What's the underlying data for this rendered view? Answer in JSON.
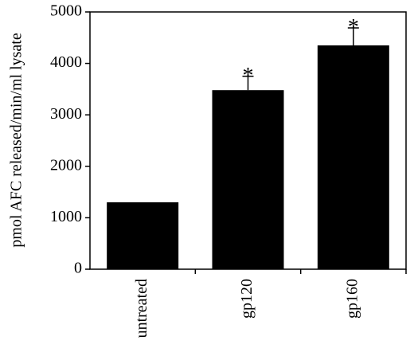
{
  "chart_data": {
    "type": "bar",
    "y_label": "pmol AFC released/min/ml lysate",
    "categories": [
      "untreated",
      "gp120",
      "gp160"
    ],
    "values": [
      1300,
      3480,
      4350
    ],
    "errors": [
      null,
      270,
      340
    ],
    "markers": [
      null,
      "*",
      "*"
    ],
    "color": "#000000",
    "ylim": [
      0,
      5000
    ],
    "yticks": [
      0,
      1000,
      2000,
      3000,
      4000,
      5000
    ],
    "grid": false
  }
}
